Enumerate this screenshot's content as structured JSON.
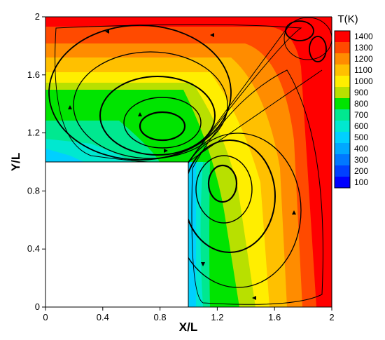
{
  "chart_data": {
    "type": "heatmap",
    "xlabel": "X/L",
    "ylabel": "Y/L",
    "xlim": [
      0,
      2
    ],
    "ylim": [
      0,
      2
    ],
    "x_ticks": [
      0,
      0.4,
      0.8,
      1.2,
      1.6,
      2
    ],
    "y_ticks": [
      0,
      0.4,
      0.8,
      1.2,
      1.6,
      2
    ],
    "x_tick_labels": [
      "0",
      "0.4",
      "0.8",
      "1.2",
      "1.6",
      "2"
    ],
    "y_tick_labels": [
      "0",
      "0.4",
      "0.8",
      "1.2",
      "1.6",
      "2"
    ],
    "domain_shape": "L-shaped cavity; lower-left square [0,1]x[0,1] is outside the domain",
    "excluded_region": {
      "x": [
        0,
        1
      ],
      "y": [
        0,
        1
      ]
    },
    "colorbar": {
      "title": "T(K)",
      "levels": [
        1400,
        1300,
        1200,
        1100,
        1000,
        900,
        800,
        700,
        600,
        500,
        400,
        300,
        200,
        100
      ],
      "labels": [
        "1400",
        "1300",
        "1200",
        "1100",
        "1000",
        "900",
        "800",
        "700",
        "600",
        "500",
        "400",
        "300",
        "200",
        "100"
      ],
      "colors": [
        "#ff0000",
        "#ff4a00",
        "#ff8c00",
        "#ffc000",
        "#ffee00",
        "#b8e000",
        "#00e400",
        "#00e890",
        "#00e8d0",
        "#00d0ff",
        "#00a8ff",
        "#0078ff",
        "#0040ff",
        "#0000ff"
      ]
    },
    "vortex_centers": [
      {
        "x": 0.82,
        "y": 1.25
      },
      {
        "x": 1.24,
        "y": 0.86
      },
      {
        "x": 1.83,
        "y": 1.9
      }
    ],
    "grid": false
  }
}
